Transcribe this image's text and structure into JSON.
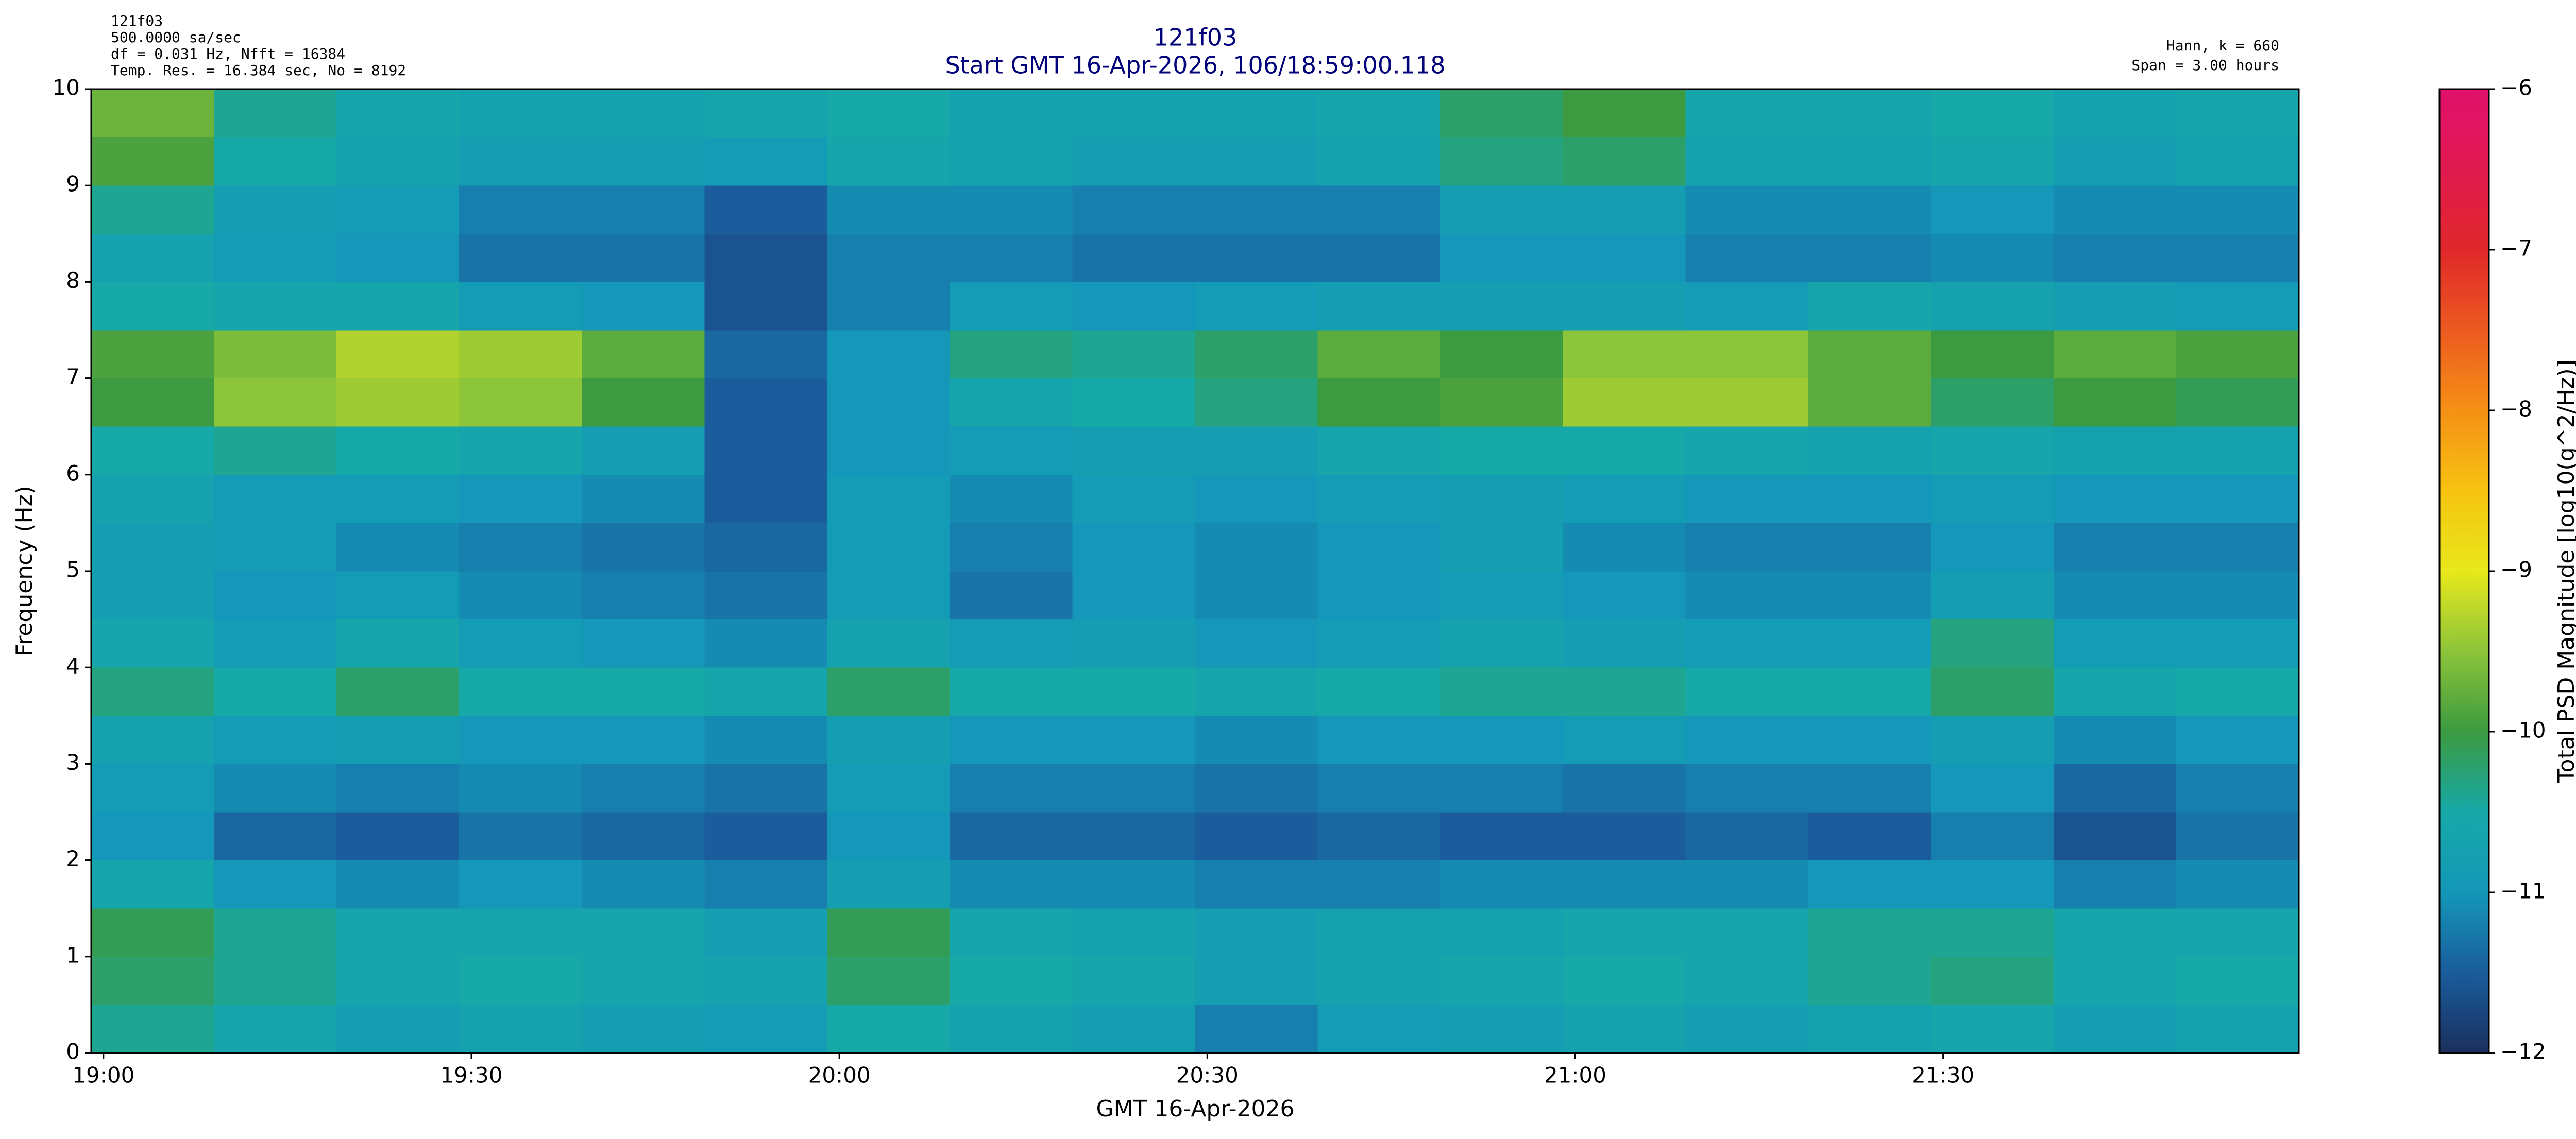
{
  "chart_data": {
    "type": "heatmap",
    "title": "121f03",
    "subtitle": "Start GMT 16-Apr-2026, 106/18:59:00.118",
    "info_left": [
      "121f03",
      "500.0000 sa/sec",
      "df = 0.031 Hz,  Nfft = 16384",
      "Temp. Res. = 16.384 sec, No = 8192"
    ],
    "info_right": [
      "Hann, k = 660",
      "Span = 3.00 hours"
    ],
    "xlabel": "GMT 16-Apr-2026",
    "ylabel": "Frequency (Hz)",
    "colorbar_label": "Total PSD Magnitude [log10(g^2/Hz)]",
    "xlim": [
      1139,
      1319
    ],
    "xticks": [
      {
        "value": 1140,
        "label": "19:00"
      },
      {
        "value": 1170,
        "label": "19:30"
      },
      {
        "value": 1200,
        "label": "20:00"
      },
      {
        "value": 1230,
        "label": "20:30"
      },
      {
        "value": 1260,
        "label": "21:00"
      },
      {
        "value": 1290,
        "label": "21:30"
      }
    ],
    "ylim": [
      0,
      10
    ],
    "yticks": [
      0,
      1,
      2,
      3,
      4,
      5,
      6,
      7,
      8,
      9,
      10
    ],
    "clim": [
      -12,
      -6
    ],
    "cticks": [
      {
        "value": -12,
        "label": "−12"
      },
      {
        "value": -11,
        "label": "−11"
      },
      {
        "value": -10,
        "label": "−10"
      },
      {
        "value": -9,
        "label": "−9"
      },
      {
        "value": -8,
        "label": "−8"
      },
      {
        "value": -7,
        "label": "−7"
      },
      {
        "value": -6,
        "label": "−6"
      }
    ],
    "colormap": [
      "#1b2f5e",
      "#1a5c9c",
      "#1497b8",
      "#16a9a8",
      "#3c9a40",
      "#8cc43a",
      "#e8e81c",
      "#f6c310",
      "#f59015",
      "#ec5a20",
      "#e0282a",
      "#e01a50",
      "#e0106c"
    ],
    "x_bins": [
      1139,
      1149,
      1159,
      1169,
      1179,
      1189,
      1199,
      1209,
      1219,
      1229,
      1239,
      1249,
      1259,
      1269,
      1279,
      1289,
      1299,
      1309,
      1319
    ],
    "y_bins": [
      0,
      0.5,
      1,
      1.5,
      2,
      2.5,
      3,
      3.5,
      4,
      4.5,
      5,
      5.5,
      6,
      6.5,
      7,
      7.5,
      8,
      8.5,
      9,
      9.5,
      10
    ],
    "z": [
      [
        -10.4,
        -10.6,
        -10.8,
        -10.7,
        -10.8,
        -10.9,
        -10.5,
        -10.7,
        -10.8,
        -11.2,
        -10.9,
        -10.8,
        -10.7,
        -10.8,
        -10.7,
        -10.6,
        -10.8,
        -10.7
      ],
      [
        -10.2,
        -10.4,
        -10.6,
        -10.5,
        -10.6,
        -10.7,
        -10.2,
        -10.5,
        -10.6,
        -10.8,
        -10.7,
        -10.6,
        -10.5,
        -10.6,
        -10.4,
        -10.3,
        -10.6,
        -10.5
      ],
      [
        -10.1,
        -10.4,
        -10.6,
        -10.6,
        -10.6,
        -10.8,
        -10.1,
        -10.6,
        -10.7,
        -10.8,
        -10.7,
        -10.7,
        -10.6,
        -10.6,
        -10.4,
        -10.4,
        -10.6,
        -10.6
      ],
      [
        -10.6,
        -11.0,
        -11.1,
        -11.0,
        -11.1,
        -11.2,
        -10.8,
        -11.1,
        -11.1,
        -11.2,
        -11.2,
        -11.1,
        -11.1,
        -11.1,
        -11.0,
        -11.0,
        -11.2,
        -11.1
      ],
      [
        -11.0,
        -11.4,
        -11.5,
        -11.3,
        -11.4,
        -11.5,
        -11.0,
        -11.4,
        -11.4,
        -11.5,
        -11.4,
        -11.5,
        -11.5,
        -11.4,
        -11.5,
        -11.2,
        -11.6,
        -11.3
      ],
      [
        -10.9,
        -11.1,
        -11.2,
        -11.1,
        -11.2,
        -11.3,
        -10.9,
        -11.2,
        -11.2,
        -11.3,
        -11.2,
        -11.2,
        -11.3,
        -11.2,
        -11.2,
        -11.0,
        -11.4,
        -11.2
      ],
      [
        -10.7,
        -10.9,
        -10.8,
        -11.0,
        -11.0,
        -11.1,
        -10.8,
        -11.0,
        -11.0,
        -11.1,
        -11.0,
        -11.0,
        -10.9,
        -11.0,
        -11.0,
        -10.8,
        -11.1,
        -11.0
      ],
      [
        -10.3,
        -10.5,
        -10.2,
        -10.5,
        -10.5,
        -10.6,
        -10.2,
        -10.5,
        -10.5,
        -10.6,
        -10.5,
        -10.4,
        -10.4,
        -10.5,
        -10.5,
        -10.2,
        -10.6,
        -10.5
      ],
      [
        -10.6,
        -10.9,
        -10.6,
        -10.9,
        -11.0,
        -11.1,
        -10.7,
        -10.9,
        -10.8,
        -11.0,
        -10.9,
        -10.7,
        -10.8,
        -10.9,
        -10.9,
        -10.3,
        -10.9,
        -10.9
      ],
      [
        -10.8,
        -11.0,
        -10.9,
        -11.1,
        -11.2,
        -11.3,
        -10.9,
        -11.3,
        -11.0,
        -11.1,
        -11.0,
        -10.9,
        -11.0,
        -11.1,
        -11.1,
        -10.8,
        -11.1,
        -11.1
      ],
      [
        -10.8,
        -10.9,
        -11.1,
        -11.2,
        -11.3,
        -11.4,
        -10.9,
        -11.2,
        -11.0,
        -11.1,
        -11.0,
        -10.8,
        -11.1,
        -11.2,
        -11.2,
        -11.0,
        -11.2,
        -11.2
      ],
      [
        -10.7,
        -10.9,
        -10.9,
        -11.0,
        -11.1,
        -11.5,
        -10.9,
        -11.1,
        -10.9,
        -11.0,
        -10.9,
        -10.8,
        -10.9,
        -11.0,
        -11.0,
        -10.9,
        -11.0,
        -11.0
      ],
      [
        -10.5,
        -10.4,
        -10.5,
        -10.6,
        -10.8,
        -11.5,
        -11.0,
        -10.9,
        -10.8,
        -10.8,
        -10.6,
        -10.5,
        -10.5,
        -10.6,
        -10.7,
        -10.6,
        -10.7,
        -10.7
      ],
      [
        -10.0,
        -9.5,
        -9.4,
        -9.5,
        -10.0,
        -11.5,
        -11.0,
        -10.6,
        -10.5,
        -10.3,
        -10.0,
        -9.9,
        -9.4,
        -9.4,
        -9.8,
        -10.2,
        -10.0,
        -10.1
      ],
      [
        -9.9,
        -9.6,
        -9.3,
        -9.4,
        -9.8,
        -11.4,
        -11.0,
        -10.3,
        -10.4,
        -10.2,
        -9.8,
        -10.0,
        -9.5,
        -9.5,
        -9.8,
        -10.0,
        -9.8,
        -9.9
      ],
      [
        -10.5,
        -10.6,
        -10.6,
        -10.9,
        -11.0,
        -11.6,
        -11.2,
        -10.9,
        -11.0,
        -10.9,
        -10.8,
        -10.8,
        -10.8,
        -10.9,
        -10.6,
        -10.7,
        -10.8,
        -10.9
      ],
      [
        -10.7,
        -10.9,
        -11.0,
        -11.3,
        -11.3,
        -11.6,
        -11.2,
        -11.2,
        -11.3,
        -11.3,
        -11.3,
        -11.0,
        -11.0,
        -11.2,
        -11.2,
        -11.1,
        -11.2,
        -11.2
      ],
      [
        -10.4,
        -10.8,
        -10.9,
        -11.2,
        -11.2,
        -11.5,
        -11.1,
        -11.1,
        -11.2,
        -11.2,
        -11.2,
        -10.8,
        -10.8,
        -11.1,
        -11.1,
        -11.0,
        -11.1,
        -11.1
      ],
      [
        -9.9,
        -10.5,
        -10.7,
        -10.8,
        -10.8,
        -10.9,
        -10.6,
        -10.7,
        -10.8,
        -10.8,
        -10.7,
        -10.3,
        -10.2,
        -10.7,
        -10.7,
        -10.6,
        -10.8,
        -10.7
      ],
      [
        -9.7,
        -10.4,
        -10.6,
        -10.7,
        -10.7,
        -10.6,
        -10.5,
        -10.7,
        -10.7,
        -10.7,
        -10.6,
        -10.2,
        -10.0,
        -10.6,
        -10.6,
        -10.5,
        -10.7,
        -10.6
      ]
    ]
  }
}
